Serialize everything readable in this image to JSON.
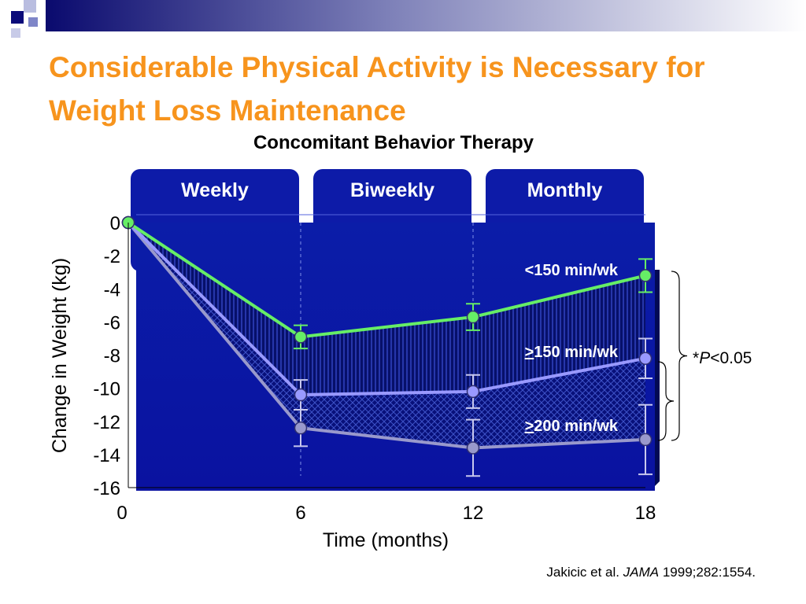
{
  "slide": {
    "title": "Considerable Physical Activity is Necessary for Weight Loss Maintenance",
    "subtitle": "Concomitant Behavior Therapy",
    "citation": {
      "authors": "Jakicic et al.",
      "journal": "JAMA",
      "details": "1999;282:1554."
    }
  },
  "chart_data": {
    "type": "line",
    "xlabel": "Time (months)",
    "ylabel": "Change in Weight (kg)",
    "x": [
      0,
      6,
      12,
      18
    ],
    "xticks": [
      "0",
      "6",
      "12",
      "18"
    ],
    "yticks": [
      "0",
      "-2",
      "-4",
      "-6",
      "-8",
      "-10",
      "-12",
      "-14",
      "-16"
    ],
    "xlim": [
      0,
      18
    ],
    "ylim": [
      -16,
      0
    ],
    "phases": [
      {
        "label": "Weekly",
        "from": 0,
        "to": 6
      },
      {
        "label": "Biweekly",
        "from": 6,
        "to": 12
      },
      {
        "label": "Monthly",
        "from": 12,
        "to": 18
      }
    ],
    "series": [
      {
        "name": "<150 min/wk",
        "label_prefix": "<",
        "label_rest": "150 min/wk",
        "values": [
          0,
          -6.9,
          -5.7,
          -3.2
        ],
        "error": [
          0,
          0.7,
          0.8,
          1.0
        ],
        "color": "#66ee66"
      },
      {
        "name": "≥150 min/wk",
        "label_prefix": ">",
        "label_rest": "150 min/wk",
        "values": [
          0,
          -10.4,
          -10.2,
          -8.2
        ],
        "error": [
          0,
          0.9,
          1.0,
          1.2
        ],
        "color": "#9999ff"
      },
      {
        "name": "≥200 min/wk",
        "label_prefix": ">",
        "label_rest": "200 min/wk",
        "values": [
          0,
          -12.4,
          -13.6,
          -13.1
        ],
        "error": [
          0,
          1.1,
          1.7,
          2.1
        ],
        "color": "#9999cc"
      }
    ],
    "annotation": {
      "prefix": "*",
      "italic": "P",
      "rest": "<0.05"
    },
    "colors": {
      "panel": "#0a14b0",
      "panel_dark": "#040a6e",
      "phase_tab": "#0d1ba8",
      "accent_title": "#f7941d"
    }
  }
}
